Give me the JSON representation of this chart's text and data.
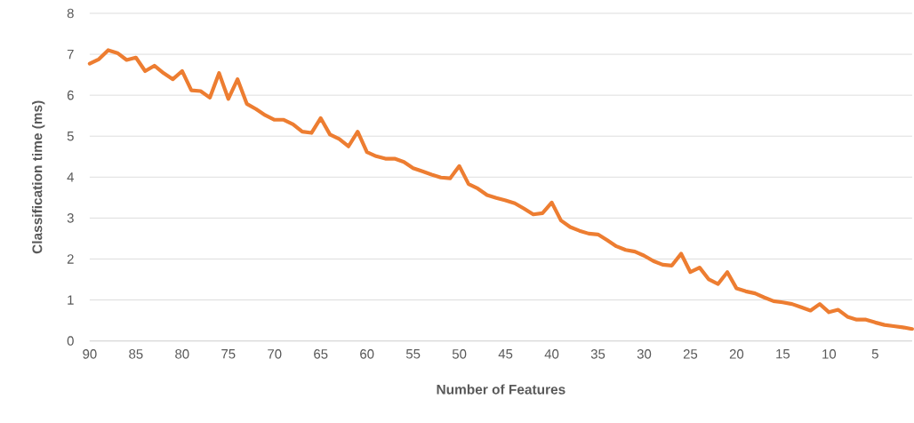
{
  "chart_data": {
    "type": "line",
    "xlabel": "Number of Features",
    "ylabel": "Classification time (ms)",
    "x": [
      90,
      89,
      88,
      87,
      86,
      85,
      84,
      83,
      82,
      81,
      80,
      79,
      78,
      77,
      76,
      75,
      74,
      73,
      72,
      71,
      70,
      69,
      68,
      67,
      66,
      65,
      64,
      63,
      62,
      61,
      60,
      59,
      58,
      57,
      56,
      55,
      54,
      53,
      52,
      51,
      50,
      49,
      48,
      47,
      46,
      45,
      44,
      43,
      42,
      41,
      40,
      39,
      38,
      37,
      36,
      35,
      34,
      33,
      32,
      31,
      30,
      29,
      28,
      27,
      26,
      25,
      24,
      23,
      22,
      21,
      20,
      19,
      18,
      17,
      16,
      15,
      14,
      13,
      12,
      11,
      10,
      9,
      8,
      7,
      6,
      5,
      4,
      3,
      2,
      1
    ],
    "series": [
      {
        "color": "#ed7d31",
        "values": [
          6.77,
          6.88,
          7.1,
          7.03,
          6.86,
          6.92,
          6.59,
          6.72,
          6.54,
          6.39,
          6.59,
          6.12,
          6.1,
          5.94,
          6.54,
          5.91,
          6.39,
          5.79,
          5.66,
          5.51,
          5.4,
          5.4,
          5.29,
          5.11,
          5.08,
          5.44,
          5.04,
          4.93,
          4.75,
          5.11,
          4.61,
          4.51,
          4.45,
          4.45,
          4.37,
          4.22,
          4.14,
          4.06,
          3.99,
          3.97,
          4.27,
          3.83,
          3.72,
          3.56,
          3.49,
          3.43,
          3.36,
          3.23,
          3.09,
          3.12,
          3.38,
          2.94,
          2.78,
          2.69,
          2.62,
          2.6,
          2.46,
          2.31,
          2.22,
          2.18,
          2.08,
          1.95,
          1.86,
          1.84,
          2.13,
          1.68,
          1.79,
          1.5,
          1.39,
          1.68,
          1.28,
          1.21,
          1.16,
          1.06,
          0.97,
          0.94,
          0.9,
          0.82,
          0.74,
          0.9,
          0.7,
          0.76,
          0.59,
          0.52,
          0.52,
          0.45,
          0.39,
          0.36,
          0.33,
          0.29
        ]
      }
    ],
    "xlim": [
      90,
      1
    ],
    "ylim": [
      0,
      8
    ],
    "xticks": [
      90,
      85,
      80,
      75,
      70,
      65,
      60,
      55,
      50,
      45,
      40,
      35,
      30,
      25,
      20,
      15,
      10,
      5
    ],
    "yticks": [
      0,
      1,
      2,
      3,
      4,
      5,
      6,
      7,
      8
    ],
    "grid": "y",
    "marker": "none",
    "line_style": "solid"
  }
}
